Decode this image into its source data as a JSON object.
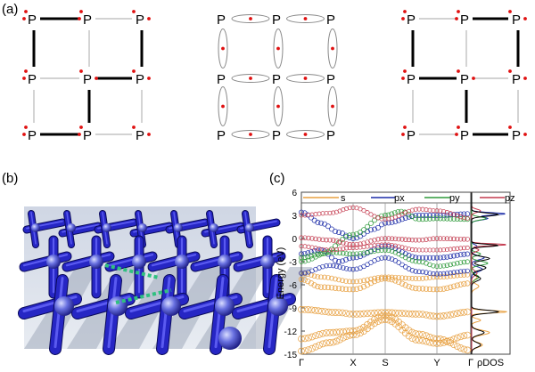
{
  "panel_labels": [
    "(a)",
    "(b)",
    "(c)"
  ],
  "atom_label": "P",
  "bands": {
    "legend": [
      "s",
      "px",
      "py",
      "pz"
    ],
    "ylabel": "Energy (eV)",
    "yticks": [
      "6",
      "3",
      "0",
      "-3",
      "-6",
      "-9",
      "-12",
      "-15"
    ],
    "xticks": [
      "Γ",
      "X",
      "S",
      "Y",
      "Γ"
    ],
    "dos_label": "ρDOS",
    "colors": {
      "s": "#E8A040",
      "px": "#1C2CA8",
      "py": "#2E9A3A",
      "pz": "#C43A4E"
    }
  },
  "chart_data": {
    "type": "line",
    "title": "",
    "xlabel": "",
    "ylabel": "Energy (eV)",
    "x": [
      "Γ",
      "X",
      "S",
      "Y",
      "Γ"
    ],
    "ylim": [
      -15,
      6
    ],
    "legend_position": "top",
    "series": [
      {
        "name": "s",
        "values": [
          -9.5,
          -9.5,
          -10.0,
          -9.5,
          -9.5
        ]
      },
      {
        "name": "s",
        "values": [
          -12.5,
          -12.0,
          -10.0,
          -12.5,
          -14.0
        ]
      },
      {
        "name": "px",
        "values": [
          3.0,
          0.0,
          0.5,
          3.0,
          3.0
        ]
      },
      {
        "name": "py",
        "values": [
          -2.0,
          0.5,
          3.0,
          2.5,
          -2.0
        ]
      },
      {
        "name": "pz",
        "values": [
          0.0,
          -1.0,
          0.5,
          0.0,
          0.0
        ]
      }
    ]
  }
}
